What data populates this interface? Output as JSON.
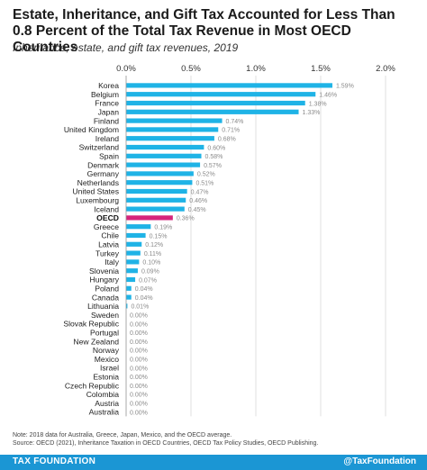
{
  "header": {
    "title": "Estate, Inheritance, and Gift Tax Accounted for Less Than 0.8 Percent of the Total Tax Revenue in Most OECD Countries",
    "subtitle": "Inheritance, estate, and gift tax revenues, 2019"
  },
  "chart_data": {
    "type": "bar",
    "orientation": "horizontal",
    "categories": [
      "Korea",
      "Belgium",
      "France",
      "Japan",
      "Finland",
      "United Kingdom",
      "Ireland",
      "Switzerland",
      "Spain",
      "Denmark",
      "Germany",
      "Netherlands",
      "United States",
      "Luxembourg",
      "Iceland",
      "OECD",
      "Greece",
      "Chile",
      "Latvia",
      "Turkey",
      "Italy",
      "Slovenia",
      "Hungary",
      "Poland",
      "Canada",
      "Lithuania",
      "Sweden",
      "Slovak Republic",
      "Portugal",
      "New Zealand",
      "Norway",
      "Mexico",
      "Israel",
      "Estonia",
      "Czech Republic",
      "Colombia",
      "Austria",
      "Australia"
    ],
    "values": [
      1.59,
      1.46,
      1.38,
      1.33,
      0.74,
      0.71,
      0.68,
      0.6,
      0.58,
      0.57,
      0.52,
      0.51,
      0.47,
      0.46,
      0.45,
      0.36,
      0.19,
      0.15,
      0.12,
      0.11,
      0.1,
      0.09,
      0.07,
      0.04,
      0.04,
      0.01,
      0.0,
      0.0,
      0.0,
      0.0,
      0.0,
      0.0,
      0.0,
      0.0,
      0.0,
      0.0,
      0.0,
      0.0
    ],
    "value_labels": [
      "1.59%",
      "1.46%",
      "1.38%",
      "1.33%",
      "0.74%",
      "0.71%",
      "0.68%",
      "0.60%",
      "0.58%",
      "0.57%",
      "0.52%",
      "0.51%",
      "0.47%",
      "0.46%",
      "0.45%",
      "0.36%",
      "0.19%",
      "0.15%",
      "0.12%",
      "0.11%",
      "0.10%",
      "0.09%",
      "0.07%",
      "0.04%",
      "0.04%",
      "0.01%",
      "0.00%",
      "0.00%",
      "0.00%",
      "0.00%",
      "0.00%",
      "0.00%",
      "0.00%",
      "0.00%",
      "0.00%",
      "0.00%",
      "0.00%",
      "0.00%"
    ],
    "highlight_category": "OECD",
    "xlim": [
      0,
      2.0
    ],
    "x_ticks": [
      "0.0%",
      "0.5%",
      "1.0%",
      "1.5%",
      "2.0%"
    ],
    "grid": true,
    "colors": {
      "bar": "#1fb3e6",
      "highlight": "#d6247b",
      "grid": "#d8d8d8",
      "value_label": "#8a8a8a"
    }
  },
  "note": {
    "line1": "Note: 2018 data for Australia, Greece, Japan, Mexico, and the OECD average.",
    "line2": "Source: OECD (2021), Inheritance Taxation in OECD Countries, OECD Tax Policy Studies, OECD Publishing."
  },
  "footer": {
    "brand": "TAX FOUNDATION",
    "handle": "@TaxFoundation",
    "color": "#1b96d4"
  }
}
